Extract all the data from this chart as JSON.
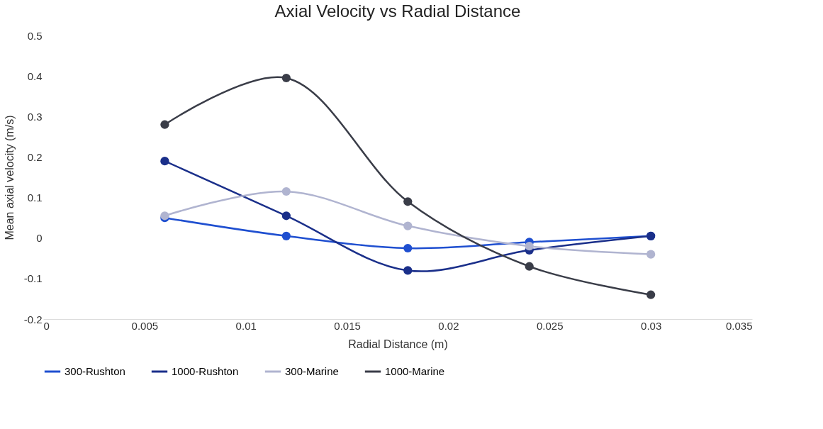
{
  "chart_data": {
    "type": "line",
    "title": "Axial Velocity vs Radial Distance",
    "xlabel": "Radial Distance (m)",
    "ylabel": "Mean axial velocity (m/s)",
    "x": [
      0.006,
      0.012,
      0.018,
      0.024,
      0.03
    ],
    "series": [
      {
        "name": "300-Rushton",
        "color": "#1f4fd0",
        "values": [
          0.05,
          0.005,
          -0.025,
          -0.01,
          0.005
        ]
      },
      {
        "name": "1000-Rushton",
        "color": "#1a2f8a",
        "values": [
          0.19,
          0.055,
          -0.08,
          -0.03,
          0.005
        ]
      },
      {
        "name": "300-Marine",
        "color": "#b0b4d0",
        "values": [
          0.055,
          0.115,
          0.03,
          -0.02,
          -0.04
        ]
      },
      {
        "name": "1000-Marine",
        "color": "#3a3d48",
        "values": [
          0.28,
          0.395,
          0.09,
          -0.07,
          -0.14
        ]
      }
    ],
    "xlim": [
      0,
      0.035
    ],
    "xticks": [
      0,
      0.005,
      0.01,
      0.015,
      0.02,
      0.025,
      0.03,
      0.035
    ],
    "ylim": [
      -0.2,
      0.5
    ],
    "yticks": [
      -0.2,
      -0.1,
      0,
      0.1,
      0.2,
      0.3,
      0.4,
      0.5
    ],
    "legend": "bottom",
    "marker": "circle",
    "line_style": "solid",
    "grid": false
  }
}
